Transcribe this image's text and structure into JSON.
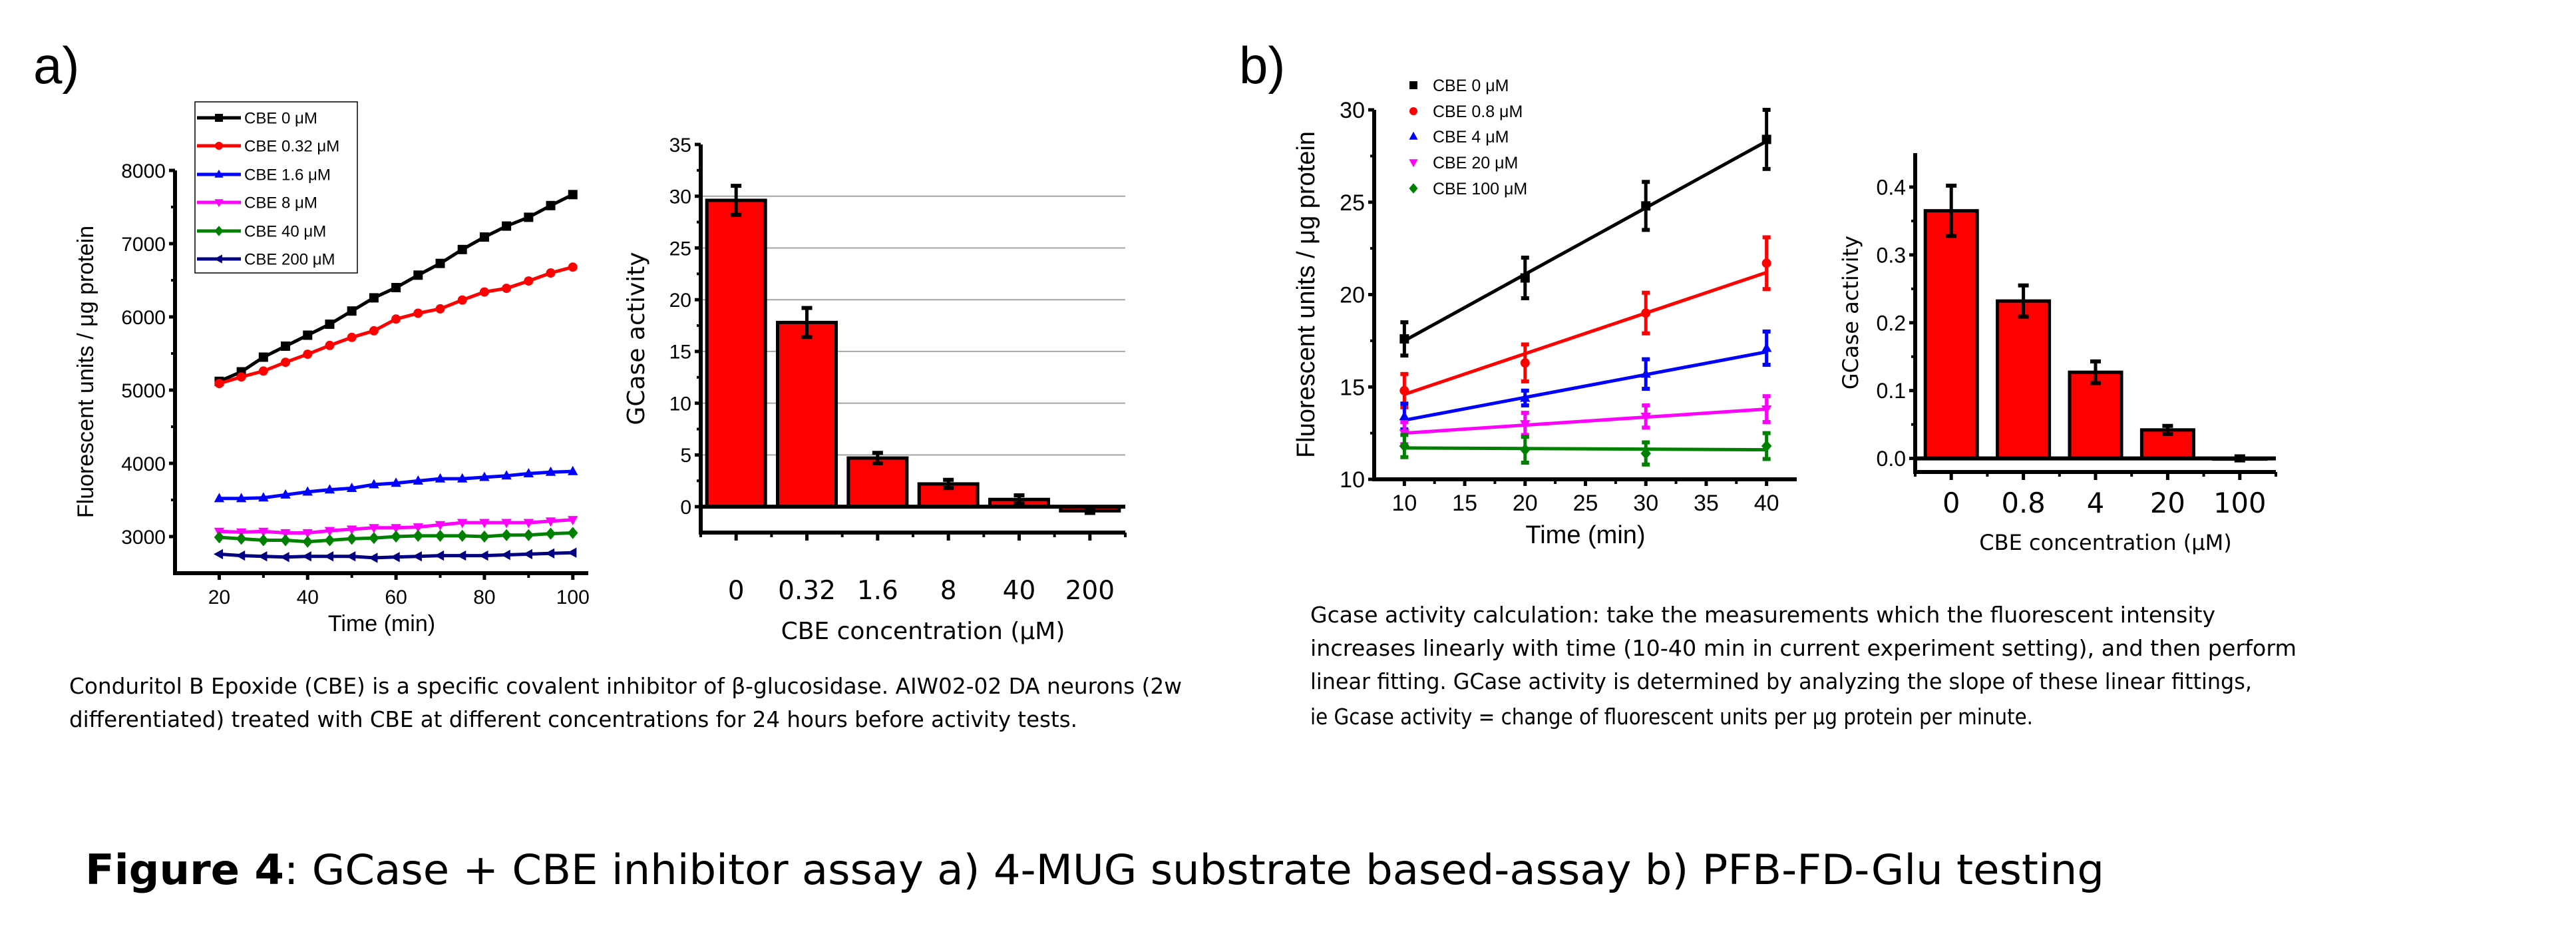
{
  "panel_labels": {
    "a": "a)",
    "b": "b)"
  },
  "caption_a": [
    "Conduritol B Epoxide (CBE) is a specific covalent inhibitor of β-glucosidase. AIW02-02 DA neurons (2w",
    "differentiated) treated with CBE at different concentrations for 24 hours before activity tests."
  ],
  "caption_b": [
    "Gcase activity calculation: take the measurements which the fluorescent intensity",
    "increases linearly with time (10-40 min in current experiment setting), and then perform",
    "linear fitting. GCase activity is determined by analyzing the slope of these linear fittings,",
    "ie Gcase activity = change of fluorescent units per µg protein per minute."
  ],
  "figure_title": {
    "bold": "Figure 4",
    "rest": ": GCase + CBE inhibitor assay a) 4-MUG substrate based-assay b) PFB-FD-Glu testing"
  },
  "chart_data": [
    {
      "type": "line",
      "title": "",
      "xlabel": "Time (min)",
      "ylabel": "Fluorescent units / μg protein",
      "xlim": [
        10,
        103.5
      ],
      "ylim": [
        2500,
        8000
      ],
      "xticks": [
        "20",
        "40",
        "60",
        "80",
        "100"
      ],
      "yticks": [
        "3000",
        "4000",
        "5000",
        "6000",
        "7000",
        "8000"
      ],
      "grid": false,
      "legend": "top-left, boxed",
      "x": [
        20,
        25,
        30,
        35,
        40,
        45,
        50,
        55,
        60,
        65,
        70,
        75,
        80,
        85,
        90,
        95,
        100
      ],
      "series": [
        {
          "name": "CBE 0 μM",
          "color": "#000000",
          "marker": "square",
          "values": [
            5120,
            5250,
            5450,
            5600,
            5750,
            5900,
            6080,
            6260,
            6400,
            6570,
            6730,
            6920,
            7090,
            7240,
            7360,
            7520,
            7670
          ]
        },
        {
          "name": "CBE 0.32 μM",
          "color": "#ff0000",
          "marker": "circle",
          "values": [
            5090,
            5180,
            5260,
            5380,
            5490,
            5610,
            5720,
            5810,
            5970,
            6050,
            6110,
            6230,
            6340,
            6390,
            6490,
            6600,
            6680
          ]
        },
        {
          "name": "CBE 1.6 μM",
          "color": "#0000ff",
          "marker": "triangle-up",
          "values": [
            3520,
            3520,
            3530,
            3570,
            3610,
            3640,
            3660,
            3710,
            3730,
            3760,
            3790,
            3790,
            3810,
            3830,
            3860,
            3880,
            3890
          ]
        },
        {
          "name": "CBE 8 μM",
          "color": "#ff00ff",
          "marker": "triangle-down",
          "values": [
            3070,
            3060,
            3070,
            3050,
            3050,
            3080,
            3100,
            3120,
            3120,
            3130,
            3160,
            3190,
            3190,
            3190,
            3190,
            3210,
            3230
          ]
        },
        {
          "name": "CBE 40 μM",
          "color": "#008000",
          "marker": "diamond",
          "values": [
            2990,
            2970,
            2950,
            2950,
            2930,
            2950,
            2970,
            2980,
            3000,
            3010,
            3010,
            3010,
            3000,
            3020,
            3020,
            3040,
            3050
          ]
        },
        {
          "name": "CBE 200 μM",
          "color": "#000080",
          "marker": "triangle-left",
          "values": [
            2760,
            2740,
            2730,
            2720,
            2730,
            2730,
            2730,
            2710,
            2720,
            2730,
            2740,
            2740,
            2740,
            2750,
            2760,
            2770,
            2780
          ]
        }
      ]
    },
    {
      "type": "bar",
      "title": "",
      "xlabel": "CBE concentration (µM)",
      "ylabel": "GCase activity",
      "categories": [
        "0",
        "0.32",
        "1.6",
        "8",
        "40",
        "200"
      ],
      "values": [
        29.6,
        17.8,
        4.7,
        2.2,
        0.7,
        -0.4
      ],
      "errors": [
        1.4,
        1.4,
        0.5,
        0.4,
        0.4,
        0.2
      ],
      "ylim": [
        -2.5,
        35
      ],
      "yticks": [
        "0",
        "5",
        "10",
        "15",
        "20",
        "25",
        "30",
        "35"
      ],
      "grid": true,
      "bar_color": "#ff0000"
    },
    {
      "type": "line",
      "title": "",
      "xlabel": "Time (min)",
      "ylabel": "Fluorescent units / μg protein",
      "xlim": [
        7.5,
        42.5
      ],
      "ylim": [
        10,
        30
      ],
      "xticks": [
        "10",
        "15",
        "20",
        "25",
        "30",
        "35",
        "40"
      ],
      "yticks": [
        "10",
        "15",
        "20",
        "25",
        "30"
      ],
      "grid": false,
      "legend": "top-left",
      "x": [
        10,
        20,
        30,
        40
      ],
      "series": [
        {
          "name": "CBE 0 μM",
          "color": "#000000",
          "marker": "square",
          "values": [
            17.6,
            20.9,
            24.8,
            28.4
          ],
          "errors": [
            0.9,
            1.1,
            1.3,
            1.6
          ],
          "fit": [
            17.5,
            28.3
          ]
        },
        {
          "name": "CBE 0.8 μM",
          "color": "#ff0000",
          "marker": "circle",
          "values": [
            14.8,
            16.3,
            19.0,
            21.7
          ],
          "errors": [
            0.9,
            1.0,
            1.1,
            1.4
          ],
          "fit": [
            14.6,
            21.2
          ]
        },
        {
          "name": "CBE 4 μM",
          "color": "#0000ff",
          "marker": "triangle-up",
          "values": [
            13.4,
            14.4,
            15.7,
            17.1
          ],
          "errors": [
            0.7,
            0.4,
            0.8,
            0.9
          ],
          "fit": [
            13.2,
            16.9
          ]
        },
        {
          "name": "CBE 20 μM",
          "color": "#ff00ff",
          "marker": "triangle-down",
          "values": [
            12.5,
            13.0,
            13.4,
            13.8
          ],
          "errors": [
            0.6,
            0.6,
            0.6,
            0.7
          ],
          "fit": [
            12.5,
            13.8
          ]
        },
        {
          "name": "CBE 100 μM",
          "color": "#008000",
          "marker": "diamond",
          "values": [
            11.8,
            11.6,
            11.4,
            11.8
          ],
          "errors": [
            0.6,
            0.7,
            0.6,
            0.7
          ],
          "fit": [
            11.7,
            11.6
          ]
        }
      ]
    },
    {
      "type": "bar",
      "title": "",
      "xlabel": "CBE concentration (µM)",
      "ylabel": "GCase activity",
      "categories": [
        "0",
        "0.8",
        "4",
        "20",
        "100"
      ],
      "values": [
        0.365,
        0.232,
        0.127,
        0.042,
        0.0
      ],
      "errors": [
        0.037,
        0.023,
        0.016,
        0.006,
        0.003
      ],
      "ylim": [
        -0.02,
        0.45
      ],
      "yticks": [
        "0.0",
        "0.1",
        "0.2",
        "0.3",
        "0.4"
      ],
      "grid": false,
      "bar_color": "#ff0000"
    }
  ]
}
